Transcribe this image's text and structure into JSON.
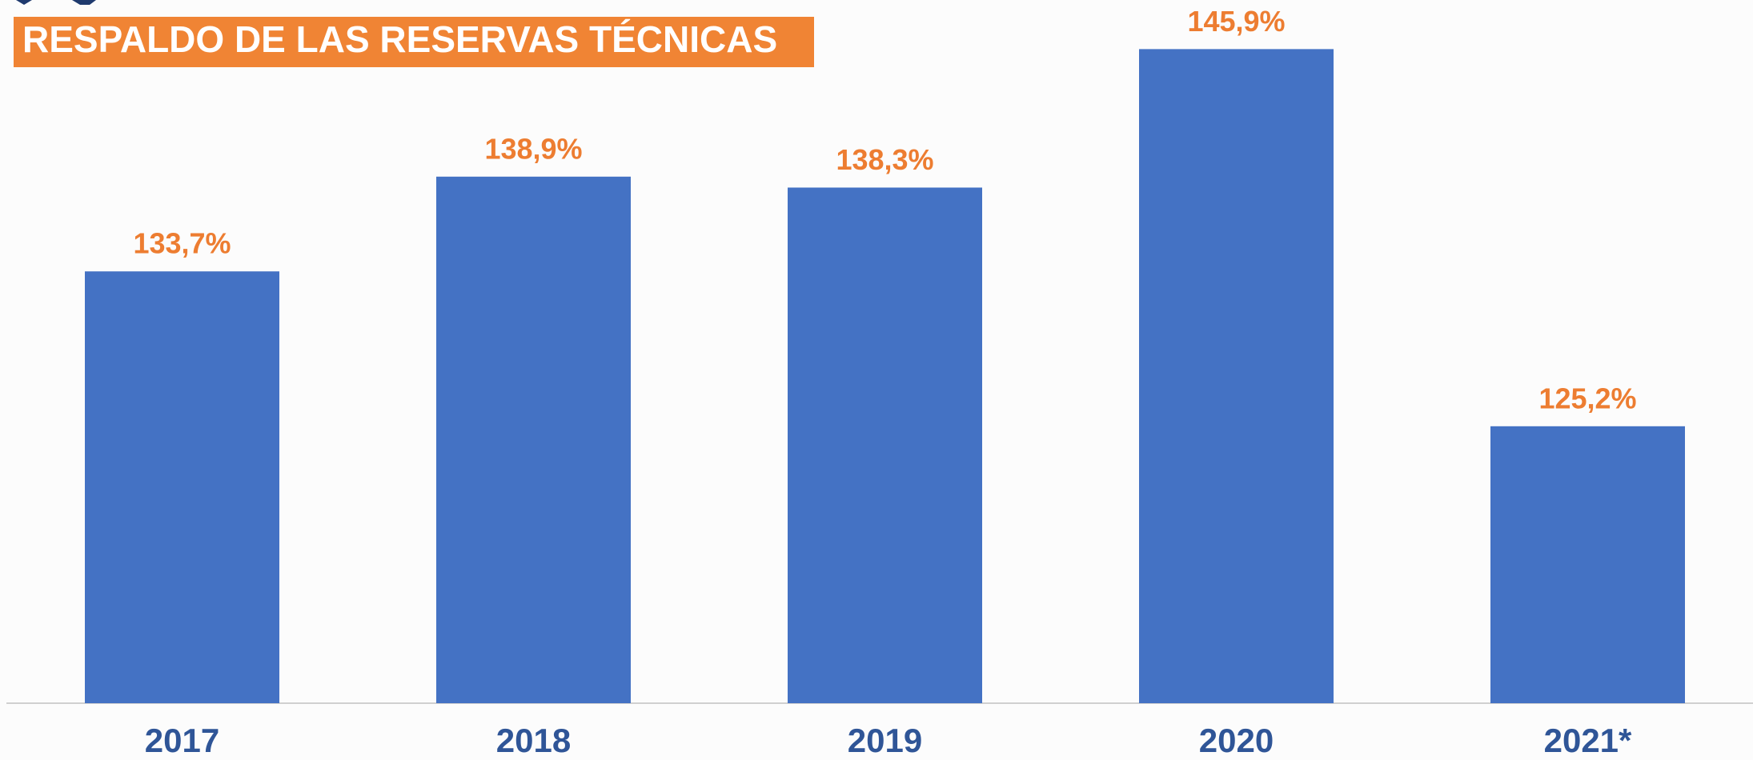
{
  "chart_data": {
    "type": "bar",
    "title": "RESPALDO DE LAS RESERVAS TÉCNICAS",
    "categories": [
      "2017",
      "2018",
      "2019",
      "2020",
      "2021*"
    ],
    "values": [
      133.7,
      138.9,
      138.3,
      145.9,
      125.2
    ],
    "value_labels": [
      "133,7%",
      "138,9%",
      "138,3%",
      "145,9%",
      "125,2%"
    ],
    "color": "#4472c4",
    "label_color": "#ed7d31",
    "category_color": "#2f5597",
    "ylim": [
      110,
      150
    ]
  }
}
